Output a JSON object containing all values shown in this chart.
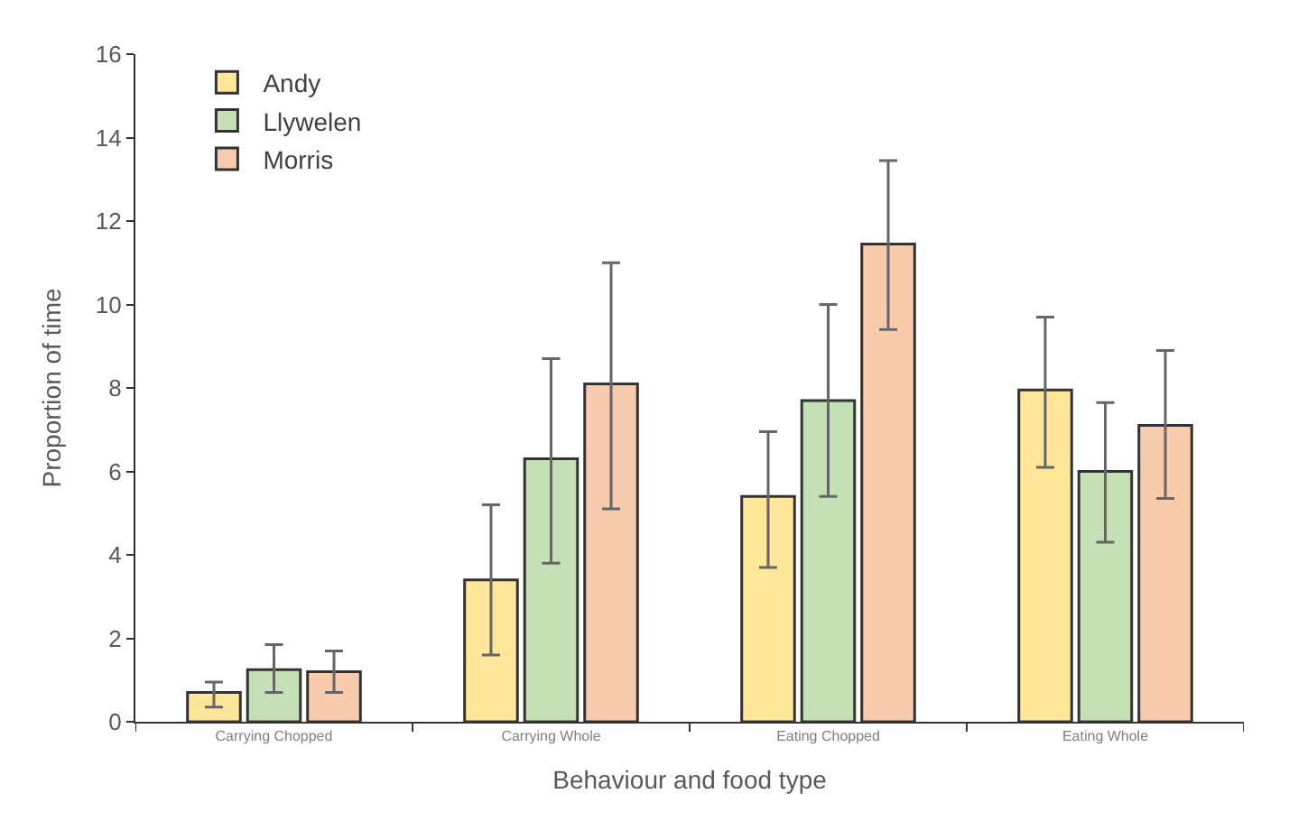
{
  "chart_data": {
    "type": "bar",
    "xlabel": "Behaviour and food type",
    "ylabel": "Proportion of time",
    "categories": [
      "Carrying Chopped",
      "Carrying Whole",
      "Eating Chopped",
      "Eating Whole"
    ],
    "series": [
      {
        "name": "Andy",
        "color": "#ffe699",
        "values": [
          0.7,
          3.4,
          5.4,
          7.95
        ],
        "errors": [
          [
            0.35,
            0.95
          ],
          [
            1.6,
            5.2
          ],
          [
            3.7,
            6.95
          ],
          [
            6.1,
            9.7
          ]
        ]
      },
      {
        "name": "Llywelen",
        "color": "#c5e0b4",
        "values": [
          1.25,
          6.3,
          7.7,
          6.0
        ],
        "errors": [
          [
            0.7,
            1.85
          ],
          [
            3.8,
            8.7
          ],
          [
            5.4,
            10.0
          ],
          [
            4.3,
            7.65
          ]
        ]
      },
      {
        "name": "Morris",
        "color": "#f8cbad",
        "values": [
          1.2,
          8.1,
          11.45,
          7.1
        ],
        "errors": [
          [
            0.7,
            1.7
          ],
          [
            5.1,
            11.0
          ],
          [
            9.4,
            13.45
          ],
          [
            5.35,
            8.9
          ]
        ]
      }
    ],
    "ylim": [
      0,
      16
    ],
    "yticks": [
      0,
      2,
      4,
      6,
      8,
      10,
      12,
      14,
      16
    ],
    "legend": "top left"
  }
}
